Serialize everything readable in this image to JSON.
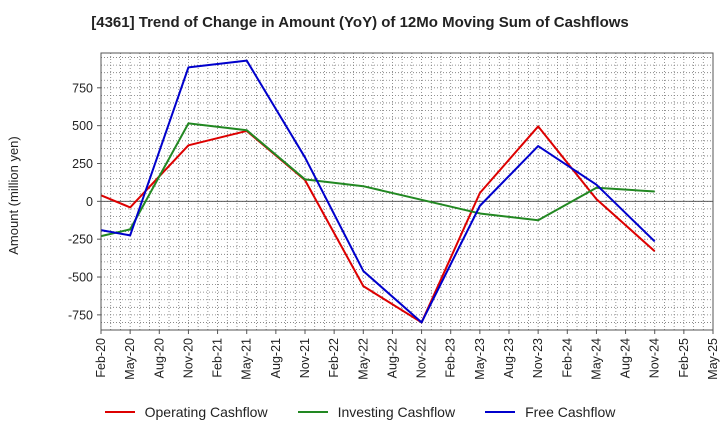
{
  "chart_data": {
    "type": "line",
    "title": "[4361]  Trend of Change in Amount (YoY) of 12Mo Moving Sum of Cashflows",
    "xlabel": "",
    "ylabel": "Amount (million yen)",
    "ylim": [
      -850,
      980
    ],
    "yticks": [
      750,
      500,
      250,
      0,
      -250,
      -500,
      -750
    ],
    "ytick_labels": [
      "750",
      "500",
      "250",
      "0",
      "-250",
      "-500",
      "-750"
    ],
    "categories": [
      "Feb-20",
      "May-20",
      "Aug-20",
      "Nov-20",
      "Feb-21",
      "May-21",
      "Aug-21",
      "Nov-21",
      "Feb-22",
      "May-22",
      "Aug-22",
      "Nov-22",
      "Feb-23",
      "May-23",
      "Aug-23",
      "Nov-23",
      "Feb-24",
      "May-24",
      "Aug-24",
      "Nov-24",
      "Feb-25",
      "May-25"
    ],
    "grid": true,
    "legend_position": "bottom",
    "series": [
      {
        "name": "Operating Cashflow",
        "color": "#dd0000",
        "values": [
          40,
          -40,
          null,
          370,
          null,
          465,
          null,
          140,
          null,
          -560,
          null,
          -800,
          null,
          55,
          null,
          495,
          null,
          15,
          null,
          -330,
          null,
          null
        ]
      },
      {
        "name": "Investing Cashflow",
        "color": "#228822",
        "values": [
          -230,
          -185,
          null,
          515,
          null,
          470,
          null,
          145,
          null,
          100,
          null,
          10,
          null,
          -80,
          null,
          -125,
          null,
          90,
          null,
          65,
          null,
          null
        ]
      },
      {
        "name": "Free Cashflow",
        "color": "#0000cc",
        "values": [
          -190,
          -225,
          null,
          885,
          null,
          930,
          null,
          290,
          null,
          -460,
          null,
          -800,
          null,
          -30,
          null,
          365,
          null,
          110,
          null,
          -265,
          null,
          null
        ]
      }
    ]
  }
}
